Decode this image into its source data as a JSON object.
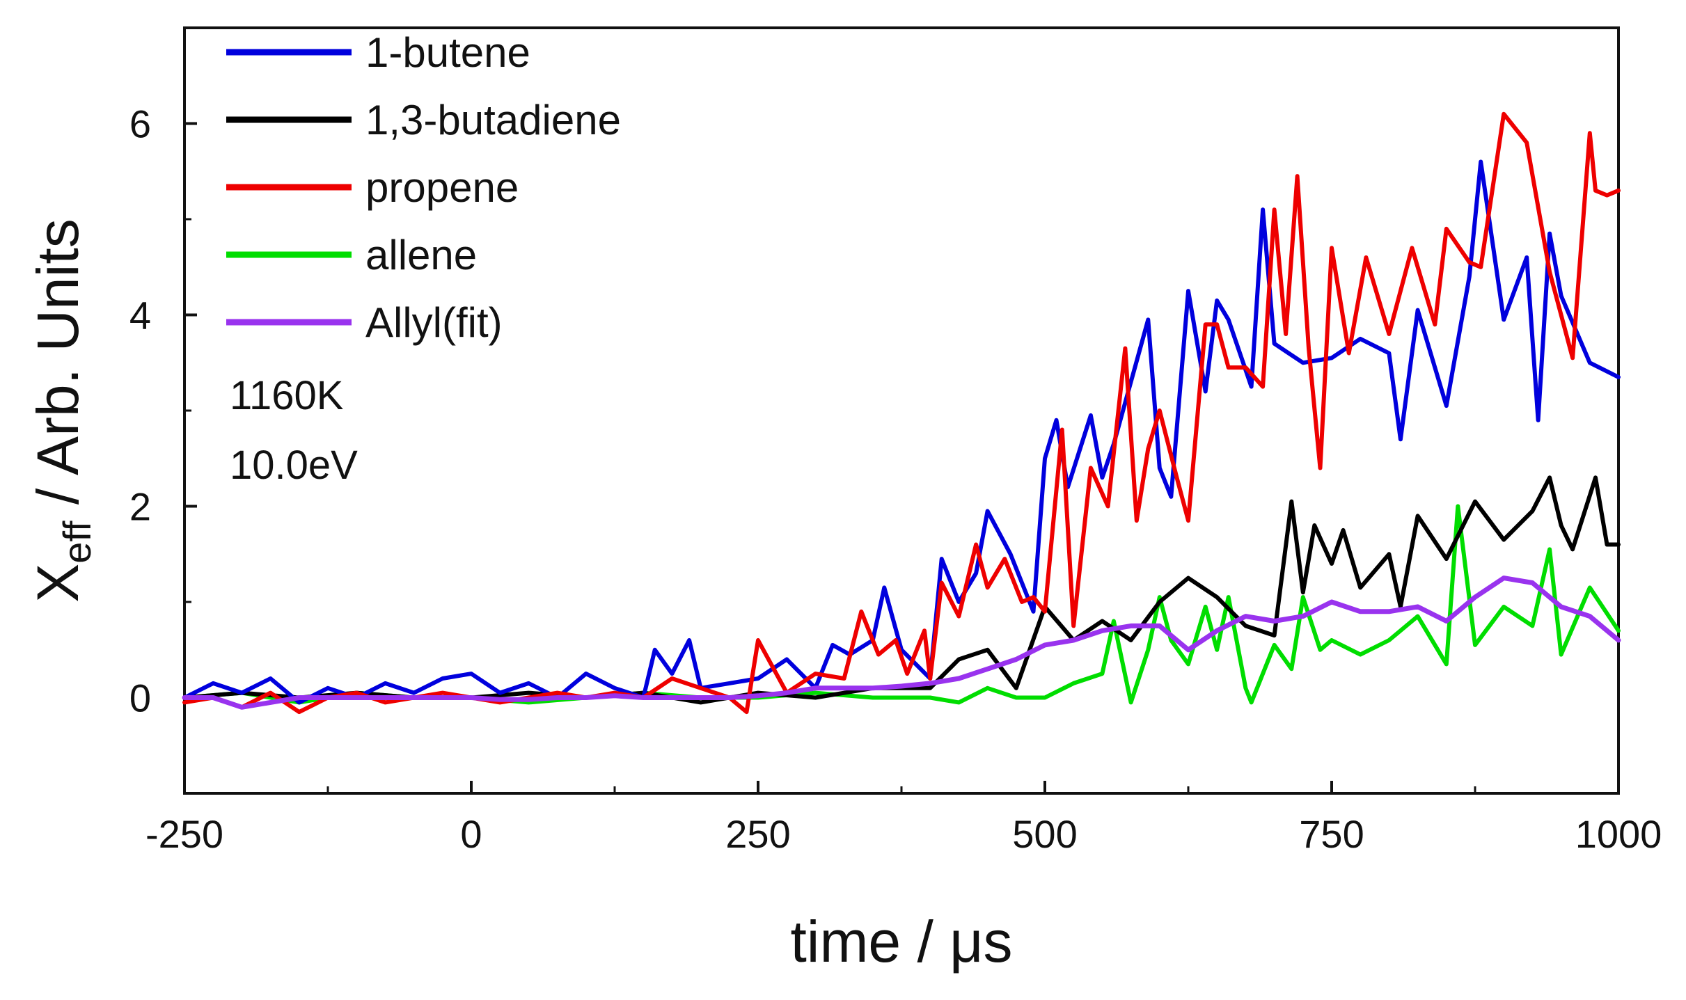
{
  "chart_data": {
    "type": "line",
    "title": "",
    "xlabel": "time / μs",
    "ylabel_main": "X",
    "ylabel_sub": "eff",
    "ylabel_rest": " / Arb. Units",
    "xlim": [
      -250,
      1000
    ],
    "ylim": [
      -1,
      7
    ],
    "xticks": [
      -250,
      0,
      250,
      500,
      750,
      1000
    ],
    "xtick_labels": [
      "-250",
      "0",
      "250",
      "500",
      "750",
      "1000"
    ],
    "yticks": [
      0,
      2,
      4,
      6
    ],
    "ytick_labels": [
      "0",
      "2",
      "4",
      "6"
    ],
    "legend_position": "top-left",
    "annotations": [
      "1160K",
      "10.0eV"
    ],
    "series": [
      {
        "name": "1-butene",
        "color": "#0000dd",
        "x": [
          -250,
          -225,
          -200,
          -175,
          -150,
          -125,
          -100,
          -75,
          -50,
          -25,
          0,
          25,
          50,
          75,
          100,
          125,
          150,
          160,
          175,
          190,
          200,
          225,
          250,
          275,
          300,
          315,
          330,
          350,
          360,
          375,
          400,
          410,
          425,
          440,
          450,
          470,
          490,
          500,
          510,
          520,
          540,
          550,
          560,
          575,
          590,
          600,
          610,
          625,
          640,
          650,
          660,
          680,
          690,
          700,
          725,
          750,
          775,
          800,
          810,
          825,
          850,
          870,
          880,
          900,
          920,
          930,
          940,
          950,
          975,
          1000
        ],
        "values": [
          0.0,
          0.15,
          0.05,
          0.2,
          -0.05,
          0.1,
          0.0,
          0.15,
          0.05,
          0.2,
          0.25,
          0.05,
          0.15,
          0.0,
          0.25,
          0.1,
          0.0,
          0.5,
          0.25,
          0.6,
          0.1,
          0.15,
          0.2,
          0.4,
          0.1,
          0.55,
          0.45,
          0.6,
          1.15,
          0.5,
          0.2,
          1.45,
          1.0,
          1.3,
          1.95,
          1.5,
          0.9,
          2.5,
          2.9,
          2.2,
          2.95,
          2.3,
          2.65,
          3.3,
          3.95,
          2.4,
          2.1,
          4.25,
          3.2,
          4.15,
          3.95,
          3.25,
          5.1,
          3.7,
          3.5,
          3.55,
          3.75,
          3.6,
          2.7,
          4.05,
          3.05,
          4.4,
          5.6,
          3.95,
          4.6,
          2.9,
          4.85,
          4.2,
          3.5,
          3.35
        ]
      },
      {
        "name": "1,3-butadiene",
        "color": "#000000",
        "x": [
          -250,
          -200,
          -150,
          -100,
          -50,
          0,
          50,
          100,
          150,
          200,
          250,
          300,
          350,
          400,
          425,
          450,
          475,
          500,
          525,
          550,
          575,
          600,
          625,
          650,
          675,
          700,
          715,
          725,
          735,
          750,
          760,
          775,
          800,
          810,
          825,
          850,
          875,
          900,
          925,
          940,
          950,
          960,
          980,
          990,
          1000
        ],
        "values": [
          0.0,
          0.05,
          0.0,
          0.05,
          0.0,
          0.0,
          0.05,
          0.0,
          0.05,
          -0.05,
          0.05,
          0.0,
          0.1,
          0.1,
          0.4,
          0.5,
          0.1,
          0.95,
          0.6,
          0.8,
          0.6,
          1.0,
          1.25,
          1.05,
          0.75,
          0.65,
          2.05,
          1.1,
          1.8,
          1.4,
          1.75,
          1.15,
          1.5,
          0.95,
          1.9,
          1.45,
          2.05,
          1.65,
          1.95,
          2.3,
          1.8,
          1.55,
          2.3,
          1.6,
          1.6
        ]
      },
      {
        "name": "propene",
        "color": "#ee0000",
        "x": [
          -250,
          -225,
          -200,
          -175,
          -150,
          -125,
          -100,
          -75,
          -50,
          -25,
          0,
          25,
          50,
          75,
          100,
          125,
          150,
          175,
          200,
          225,
          240,
          250,
          275,
          300,
          325,
          340,
          355,
          370,
          380,
          395,
          400,
          410,
          425,
          440,
          450,
          465,
          480,
          490,
          500,
          515,
          525,
          540,
          555,
          570,
          580,
          590,
          600,
          615,
          625,
          640,
          650,
          660,
          675,
          690,
          700,
          710,
          720,
          730,
          740,
          750,
          765,
          780,
          800,
          820,
          840,
          850,
          870,
          880,
          900,
          920,
          940,
          960,
          975,
          980,
          990,
          1000
        ],
        "values": [
          -0.05,
          0.0,
          -0.1,
          0.05,
          -0.15,
          0.0,
          0.05,
          -0.05,
          0.0,
          0.05,
          0.0,
          -0.05,
          0.0,
          0.05,
          0.0,
          0.05,
          0.0,
          0.2,
          0.1,
          0.0,
          -0.15,
          0.6,
          0.05,
          0.25,
          0.2,
          0.9,
          0.45,
          0.6,
          0.25,
          0.7,
          0.2,
          1.2,
          0.85,
          1.6,
          1.15,
          1.45,
          1.0,
          1.05,
          0.9,
          2.8,
          0.75,
          2.4,
          2.0,
          3.65,
          1.85,
          2.6,
          3.0,
          2.3,
          1.85,
          3.9,
          3.9,
          3.45,
          3.45,
          3.25,
          5.1,
          3.8,
          5.45,
          3.65,
          2.4,
          4.7,
          3.6,
          4.6,
          3.8,
          4.7,
          3.9,
          4.9,
          4.55,
          4.5,
          6.1,
          5.8,
          4.45,
          3.55,
          5.9,
          5.3,
          5.25,
          5.3
        ]
      },
      {
        "name": "allene",
        "color": "#00dd00",
        "x": [
          -250,
          -200,
          -150,
          -100,
          -50,
          0,
          50,
          100,
          150,
          200,
          250,
          300,
          350,
          400,
          425,
          450,
          475,
          500,
          525,
          550,
          560,
          575,
          590,
          600,
          610,
          625,
          640,
          650,
          660,
          675,
          680,
          700,
          715,
          725,
          740,
          750,
          775,
          800,
          825,
          850,
          860,
          875,
          900,
          925,
          940,
          950,
          975,
          1000
        ],
        "values": [
          0.0,
          0.05,
          -0.05,
          0.05,
          0.0,
          0.0,
          -0.05,
          0.0,
          0.05,
          0.0,
          0.0,
          0.05,
          0.0,
          0.0,
          -0.05,
          0.1,
          0.0,
          0.0,
          0.15,
          0.25,
          0.8,
          -0.05,
          0.5,
          1.05,
          0.6,
          0.35,
          0.95,
          0.5,
          1.05,
          0.1,
          -0.05,
          0.55,
          0.3,
          1.05,
          0.5,
          0.6,
          0.45,
          0.6,
          0.85,
          0.35,
          2.0,
          0.55,
          0.95,
          0.75,
          1.55,
          0.45,
          1.15,
          0.7
        ]
      },
      {
        "name": "Allyl(fit)",
        "color": "#9933ee",
        "x": [
          -250,
          -225,
          -200,
          -175,
          -150,
          -125,
          -100,
          -75,
          -50,
          -25,
          0,
          25,
          50,
          75,
          100,
          125,
          150,
          175,
          200,
          225,
          250,
          275,
          300,
          325,
          350,
          375,
          400,
          425,
          450,
          475,
          500,
          525,
          550,
          575,
          600,
          625,
          650,
          675,
          700,
          725,
          750,
          775,
          800,
          825,
          850,
          875,
          900,
          925,
          950,
          975,
          1000
        ],
        "values": [
          0.0,
          0.0,
          -0.1,
          -0.05,
          0.0,
          0.0,
          0.0,
          0.0,
          0.0,
          0.0,
          0.0,
          -0.02,
          -0.02,
          0.0,
          0.0,
          0.02,
          0.0,
          0.0,
          0.0,
          0.0,
          0.02,
          0.05,
          0.1,
          0.1,
          0.1,
          0.12,
          0.15,
          0.2,
          0.3,
          0.4,
          0.55,
          0.6,
          0.7,
          0.75,
          0.75,
          0.5,
          0.7,
          0.85,
          0.8,
          0.85,
          1.0,
          0.9,
          0.9,
          0.95,
          0.8,
          1.05,
          1.25,
          1.2,
          0.95,
          0.85,
          0.6
        ]
      }
    ]
  }
}
